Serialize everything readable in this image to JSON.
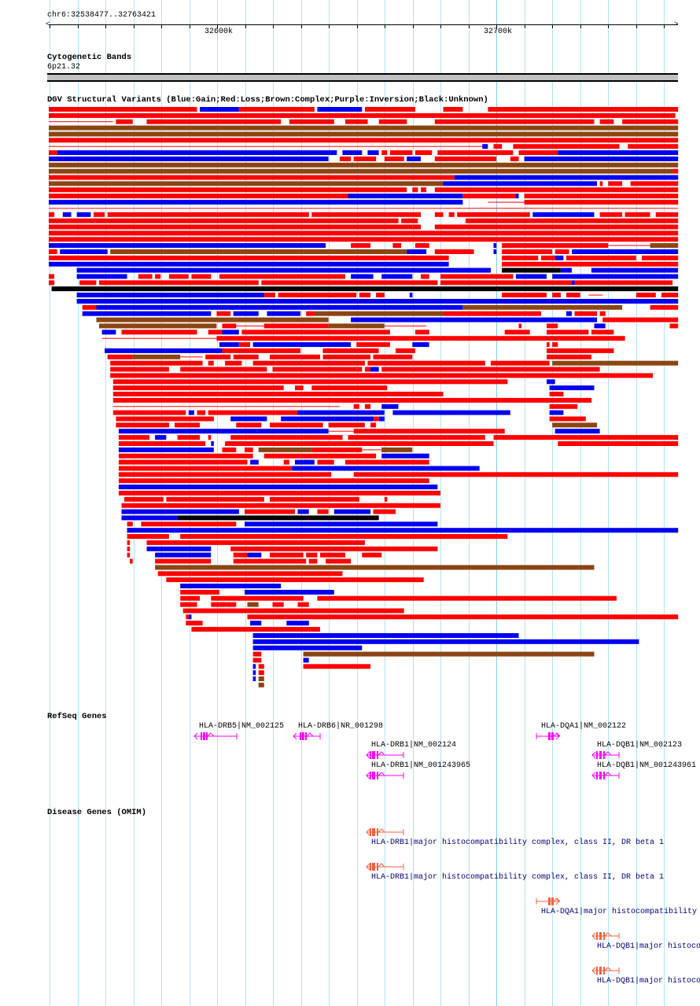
{
  "ruler": {
    "region": "chr6:32538477..32763421",
    "ticks": [
      "32600k",
      "32700k"
    ]
  },
  "region_kb": {
    "start": 32538.477,
    "end": 32763.421
  },
  "cyto": {
    "title": "Cytogenetic Bands",
    "band": "6p21.32"
  },
  "colors": {
    "G": "#0000ee",
    "L": "#ff0000",
    "C": "#8b4513",
    "K": "#000000",
    "line": "#ff0000",
    "grid": "#aee6ef",
    "refseq": "#ff00ff",
    "omim": "#f86040"
  },
  "dgv": {
    "title": "DGV Structural Variants (Blue:Gain;Red:Loss;Brown:Complex;Purple:Inversion;Black:Unknown)",
    "rows_note": "offsets in kb from region start; type G=gain L=loss C=complex K=unknown line=connector",
    "rows": [
      "L:0-53,G:54-68,L:68-95,G:96-112,L:113-131,L:141-148,L:157-225",
      "L:0-224",
      "line:0-23,L:24-30,L:35-83,L:86-102,L:106-114,L:118-128,L:138-195,L:197-202,L:205-225",
      "C:0-225",
      "C:0-225",
      "L:0-225",
      "line:0-155,G:155-157,L:159-162,L:166-204,L:207-225",
      "L:0-3,G:3-103,G:105-112,G:114-118,L:119-121,L:122-130,L:131-137,L:139-166,L:168-182,G:182-225",
      "G:0-100,L:104-108,L:109-117,L:120-127,G:128-133,L:138-160,L:165-168,G:170-225",
      "C:0-225",
      "C:0-223,L:223-225",
      "L:0-145,G:145-225",
      "C:0-141,G:141-196,L:197-198,L:200-205,L:208-225",
      "L:0-128,L:130-132,L:133-135,L:138-225",
      "L:0-107,G:107-148,L:148-167,G:167-168,L:170-225",
      "G:0-148,line:157-170,L:170-225",
      "line:0-225",
      "L:0-2,G:5-8,G:10-15,L:16-20,L:21-93,L:94-133,L:138-141,L:143-145,L:146-172,G:173-195,L:197-205,L:206-215,L:217-225",
      "L:0-125,L:126-132,L:149-225",
      "L:0-130,L:130-133,L:138-225",
      "L:0-225",
      "L:0-225",
      "G:0-99,L:108-115,L:123-126,L:131-136,G:159-160,L:162-200,line:200-215,C:215-225",
      "L:0-3,G:4-21,C:22-128,G:128-135,L:138-152,G:159-160,L:162-180,L:181-186,G:187-225",
      "L:0-143,L:162-175,L:176-181,G:181-184,L:185-210,L:212-225",
      "G:0-143,L:162-225",
      "G:10-158,K:162-183,G:183-187,G:194-225",
      "L:0-2,G:10-28,L:32-37,L:38-40,L:43-50,L:51-58,L:61-106,G:108-116,G:119-130,L:133-136,L:140-166,G:167-178,G:180-225",
      "L:0-2,L:11-17,L:18-26,L:26-75,L:76-113,L:113-139,L:140-187,G:187-188,L:188-223",
      "K:1-225",
      "G:10-77,L:77-81,L:82-110,L:111-115,L:117-120,G:129-130,L:162-178,L:180-183,L:185-190,line:193-198,L:210-217,L:219-225",
      "G:10-225",
      "L:12-17,G:17-148,C:148-205,L:215-225",
      "G:12-58,L:60-65,G:66-75,G:78-90,L:92-95,C:95-141,L:141-155,L:155-176,G:185-187,L:188-196,L:197-199",
      "C:17-100,G:108-196,L:198-225",
      "C:18-60,L:62-67,line:67-77,L:77-100,C:100-120,line:120-135,L:168-169,L:178-182,G:195-199,L:222-225",
      "G:19-24,L:26-53,L:57-62,G:62-68,L:69-122,L:131-136,L:163-172,L:178-193,L:194-202",
      "line:19-60,L:60-206",
      "G:61-68,L:68-72,G:73-108,L:110-122,G:130-136,L:178-179,L:180-182",
      "G:20-62,L:62-90,L:98-118,L:124-131,L:178-202",
      "L:21-30,C:30-47,line:47-55,L:56-65,L:66-75,L:79-97,L:98-115,L:116-130,L:178-194",
      "L:22-55,L:57-59,L:63-69,L:73-81,L:81-88,L:88-113,L:114-156,L:158-179,C:180-225",
      "L:22-43,L:47-78,L:80-110,L:110-112,L:113-115,G:115-118,L:119-197",
      "L:22-216",
      "L:23-164,G:178-181",
      "L:23-84,L:88-91,L:94-121,G:179-195",
      "L:23-141,L:179-184",
      "L:23-194",
      "line:23-104,L:109-111,L:113-115,G:119-125,L:179-189",
      "L:23-49,G:50-52,L:53-56,L:57-89,G:89-120,G:123-165,G:179-184",
      "L:24-59,G:65-78,G:83-116,L:116-118,G:118-120,L:179-192",
      "L:24-43,L:45-54,L:67-76,L:79-98,L:100-113,L:115-117,C:180-196",
      "G:25-100,line:100-109,L:109-163,G:181-197",
      "L:25-36,G:38-42,L:46-54,L:57-58,L:65-105,L:107-156,L:159-225",
      "L:25-56,G:58-59,L:63-159,L:182-225",
      "G:25-59,L:62-67,L:70-73,C:75-94,L:94-112,line:112-119,L:119-121,C:119-130",
      "L:25-73,L:77-90,L:90-117,G:119-136",
      "L:25-71,G:72-75,L:84-86,G:88-91,G:91-95,L:96-102,L:106-113,L:113-136",
      "L:25-87,G:87-154",
      "L:25-101,L:109-225",
      "L:25-136",
      "G:25-139",
      "L:25-140",
      "L:27-41,L:42-77,L:79-111,L:120-121",
      "L:26-140",
      "G:26-68,L:70-88,G:89-93,L:96-100,G:102-115,L:116-124",
      "G:26-46,K:46-118",
      "L:28-30,L:33-67,G:70-139",
      "L:28-30,G:28-225",
      "L:28-43,L:47-164",
      "L:28-29,L:35-113",
      "L:28-29,G:35-58,L:65-139",
      "L:28-29,G:38-58,L:66-71,G:71-76,L:79-91,L:92-96,L:97-106,L:112-119",
      "L:29-30,L:38-58,L:66-90,L:90-92,L:93-96,L:99-108",
      "C:38-195",
      "L:39-42,L:42-105",
      "L:42-134",
      "G:47-83",
      "L:47-61,G:70-102",
      "L:47-54,L:58-91,L:96-203",
      "L:47-53,L:58-67,C:71-75,L:80-84,L:89-93",
      "L:48-127",
      "L:49-50,G:50-51,L:71-225",
      "L:49-55,G:72-76,G:85-93",
      "L:51-97",
      "G:73-168",
      "G:73-211",
      "G:73-112",
      "L:73-76,C:91-195",
      "L:73-76,G:91-93",
      "G:73-74,L:75-77,L:91-115",
      "G:73-74,L:75-77",
      "G:73-74,C:75-77",
      "C:75-77"
    ]
  },
  "refseq": {
    "title": "RefSeq Genes",
    "genes": [
      {
        "label": "HLA-DRB5|NM_002125",
        "strand": "-"
      },
      {
        "label": "HLA-DRB6|NR_001298",
        "strand": "-"
      },
      {
        "label": "HLA-DRB1|NM_002124",
        "strand": "-"
      },
      {
        "label": "HLA-DRB1|NM_001243965",
        "strand": "-"
      },
      {
        "label": "HLA-DQA1|NM_002122",
        "strand": "+"
      },
      {
        "label": "HLA-DQB1|NM_002123",
        "strand": "-"
      },
      {
        "label": "HLA-DQB1|NM_001243961",
        "strand": "-"
      }
    ]
  },
  "omim": {
    "title": "Disease Genes (OMIM)",
    "genes": [
      {
        "label": "HLA-DRB1|major histocompatibility complex, class II, DR beta 1",
        "strand": "-"
      },
      {
        "label": "HLA-DRB1|major histocompatibility complex, class II, DR beta 1",
        "strand": "-"
      },
      {
        "label": "HLA-DQA1|major histocompatibility c",
        "strand": "+"
      },
      {
        "label": "HLA-DQB1|major histoco",
        "strand": "-"
      },
      {
        "label": "HLA-DQB1|major histoco",
        "strand": "-"
      }
    ]
  }
}
